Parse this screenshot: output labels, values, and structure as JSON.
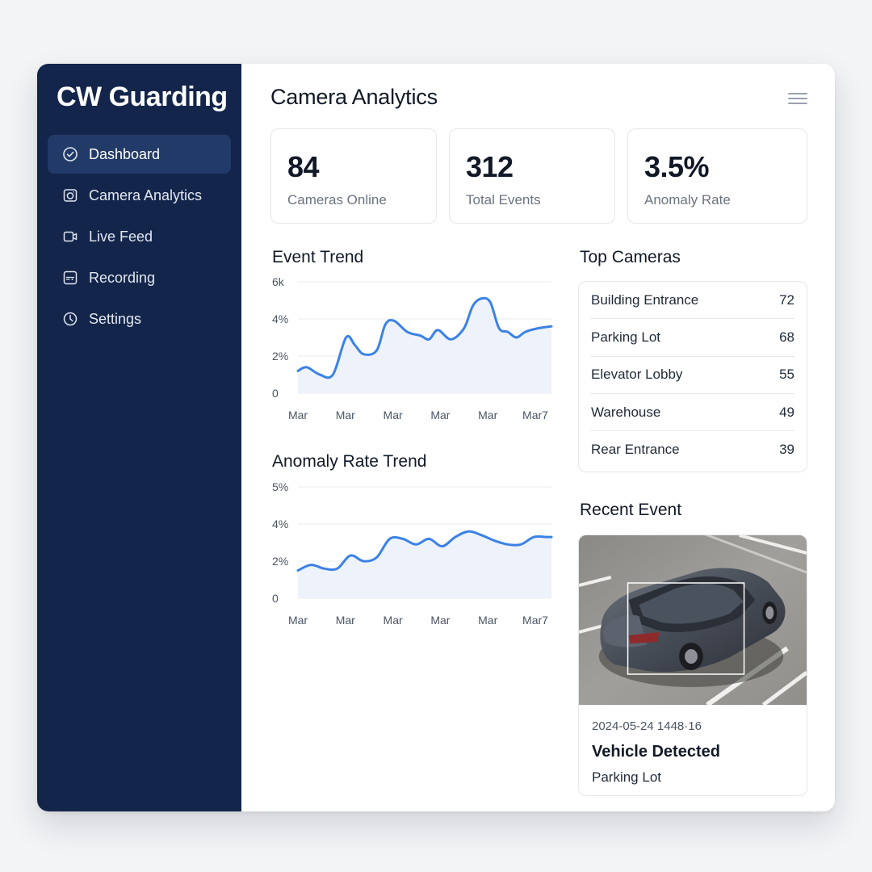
{
  "app": {
    "brand": "CW Guarding"
  },
  "sidebar": {
    "items": [
      {
        "label": "Dashboard",
        "icon": "check-circle-icon",
        "active": true
      },
      {
        "label": "Camera Analytics",
        "icon": "camera-icon",
        "active": false
      },
      {
        "label": "Live Feed",
        "icon": "video-icon",
        "active": false
      },
      {
        "label": "Recording",
        "icon": "recording-icon",
        "active": false
      },
      {
        "label": "Settings",
        "icon": "clock-icon",
        "active": false
      }
    ]
  },
  "header": {
    "title": "Camera Analytics",
    "menu_icon": "hamburger-menu-icon"
  },
  "stats": [
    {
      "value": "84",
      "label": "Cameras Online"
    },
    {
      "value": "312",
      "label": "Total Events"
    },
    {
      "value": "3.5%",
      "label": "Anomaly Rate"
    }
  ],
  "event_trend": {
    "title": "Event Trend"
  },
  "anomaly_trend": {
    "title": "Anomaly Rate Trend"
  },
  "top_cameras": {
    "title": "Top Cameras",
    "rows": [
      {
        "name": "Building Entrance",
        "count": "72"
      },
      {
        "name": "Parking Lot",
        "count": "68"
      },
      {
        "name": "Elevator Lobby",
        "count": "55"
      },
      {
        "name": "Warehouse",
        "count": "49"
      },
      {
        "name": "Rear Entrance",
        "count": "39"
      }
    ]
  },
  "recent_event": {
    "title": "Recent Event",
    "timestamp": "2024-05-24 1448·16",
    "type": "Vehicle Detected",
    "location": "Parking Lot"
  },
  "colors": {
    "sidebar_bg": "#13254a",
    "sidebar_active": "#223a68",
    "line": "#3b82e6",
    "area": "#eef2fa"
  },
  "chart_data": [
    {
      "type": "area",
      "title": "Event Trend",
      "x_tick_labels": [
        "Mar",
        "Mar",
        "Mar",
        "Mar",
        "Mar",
        "Mar7"
      ],
      "y_tick_labels": [
        "0",
        "2%",
        "4%",
        "6k"
      ],
      "ylim": [
        0,
        6
      ],
      "grid": true,
      "series": [
        {
          "x": [
            0,
            0.2,
            0.5,
            0.8,
            1.1,
            1.3,
            1.5,
            1.8,
            2.0,
            2.2,
            2.5,
            2.8,
            3.0,
            3.2,
            3.5,
            3.8,
            4.0,
            4.2,
            4.4,
            4.6,
            4.8,
            5.0,
            5.2,
            5.5,
            5.8
          ],
          "y": [
            1.2,
            1.4,
            1.0,
            1.0,
            3.0,
            2.6,
            2.1,
            2.3,
            3.7,
            3.9,
            3.3,
            3.1,
            2.9,
            3.4,
            2.9,
            3.5,
            4.7,
            5.1,
            4.9,
            3.5,
            3.3,
            3.0,
            3.3,
            3.5,
            3.6
          ]
        }
      ]
    },
    {
      "type": "area",
      "title": "Anomaly Rate Trend",
      "x_tick_labels": [
        "Mar",
        "Mar",
        "Mar",
        "Mar",
        "Mar",
        "Mar7"
      ],
      "y_tick_labels": [
        "0",
        "2%",
        "4%",
        "5%"
      ],
      "ylim": [
        0,
        6
      ],
      "grid": true,
      "series": [
        {
          "x": [
            0,
            0.3,
            0.6,
            0.9,
            1.2,
            1.5,
            1.8,
            2.1,
            2.4,
            2.7,
            3.0,
            3.3,
            3.6,
            3.9,
            4.2,
            4.5,
            4.8,
            5.1,
            5.4,
            5.7,
            5.8
          ],
          "y": [
            1.5,
            1.8,
            1.6,
            1.6,
            2.3,
            2.0,
            2.2,
            3.2,
            3.2,
            2.9,
            3.2,
            2.8,
            3.3,
            3.6,
            3.4,
            3.1,
            2.9,
            2.9,
            3.3,
            3.3,
            3.3
          ]
        }
      ]
    }
  ]
}
